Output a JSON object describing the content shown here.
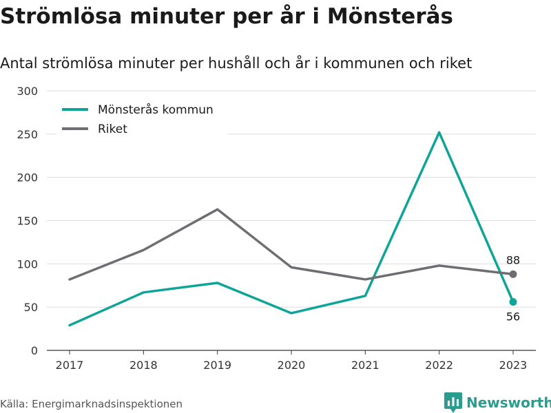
{
  "title": "Strömlösa minuter per år i Mönsterås",
  "subtitle": "Antal strömlösa minuter per hushåll och år i kommunen och riket",
  "source": "Källa: Energimarknadsinspektionen",
  "brand": {
    "name": "Newsworthy",
    "icon": "bar-chart-logo-icon",
    "color": "#2a9d8f"
  },
  "chart_data": {
    "type": "line",
    "x": [
      2017,
      2018,
      2019,
      2020,
      2021,
      2022,
      2023
    ],
    "xtick_labels": [
      "2017",
      "2018",
      "2019",
      "2020",
      "2021",
      "2022",
      "2023"
    ],
    "ylim": [
      0,
      300
    ],
    "yticks": [
      0,
      50,
      100,
      150,
      200,
      250,
      300
    ],
    "ytick_labels": [
      "0",
      "50",
      "100",
      "150",
      "200",
      "250",
      "300"
    ],
    "grid": true,
    "legend_position": "top-left",
    "series": [
      {
        "name": "Mönsterås kommun",
        "color": "#0ea598",
        "values": [
          29,
          67,
          78,
          43,
          63,
          252,
          56
        ],
        "end_label": "56"
      },
      {
        "name": "Riket",
        "color": "#6e6d72",
        "values": [
          82,
          116,
          163,
          96,
          82,
          98,
          88
        ],
        "end_label": "88"
      }
    ]
  }
}
